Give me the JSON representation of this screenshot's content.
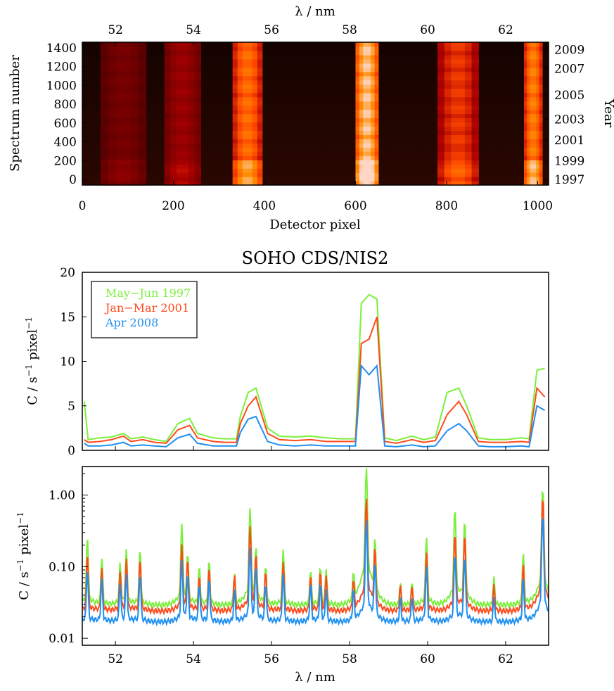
{
  "chart_data": [
    {
      "type": "heatmap",
      "title": "",
      "xlabel": "Detector pixel",
      "ylabel": "Spectrum number",
      "top_xlabel": "λ / nm",
      "right_ylabel": "Year",
      "xlim": [
        0,
        1024
      ],
      "ylim": [
        -60,
        1460
      ],
      "top_xlim": [
        51.15,
        63.1
      ],
      "x_ticks": [
        "0",
        "200",
        "400",
        "600",
        "800",
        "1000"
      ],
      "y_ticks": [
        "0",
        "200",
        "400",
        "600",
        "800",
        "1000",
        "1200",
        "1400"
      ],
      "top_ticks": [
        "52",
        "54",
        "56",
        "58",
        "60",
        "62"
      ],
      "year_ticks": [
        {
          "label": "1997",
          "spectrum": 0
        },
        {
          "label": "1999",
          "spectrum": 200
        },
        {
          "label": "2001",
          "spectrum": 420
        },
        {
          "label": "2003",
          "spectrum": 640
        },
        {
          "label": "2005",
          "spectrum": 900
        },
        {
          "label": "2007",
          "spectrum": 1180
        },
        {
          "label": "2009",
          "spectrum": 1380
        }
      ],
      "bands": [
        {
          "from": 40,
          "to": 140,
          "intensity": 0.22
        },
        {
          "from": 180,
          "to": 260,
          "intensity": 0.32
        },
        {
          "from": 330,
          "to": 395,
          "intensity": 0.72
        },
        {
          "from": 600,
          "to": 650,
          "intensity": 1.0
        },
        {
          "from": 780,
          "to": 870,
          "intensity": 0.55
        },
        {
          "from": 970,
          "to": 1010,
          "intensity": 0.78
        }
      ]
    },
    {
      "type": "line",
      "title": "SOHO CDS/NIS2",
      "xlabel": "",
      "ylabel": "C / s⁻¹ pixel⁻¹",
      "xlim": [
        51.15,
        63.1
      ],
      "ylim": [
        0,
        20
      ],
      "y_ticks": [
        "0",
        "5",
        "10",
        "15",
        "20"
      ],
      "legend": "top-left",
      "series": [
        {
          "name": "May−Jun 1997",
          "color": "#7bef3a",
          "x": [
            51.2,
            51.3,
            51.6,
            51.9,
            52.2,
            52.4,
            52.7,
            53.0,
            53.3,
            53.6,
            53.9,
            54.1,
            54.5,
            54.8,
            55.1,
            55.2,
            55.4,
            55.6,
            55.9,
            56.2,
            56.6,
            57.0,
            57.4,
            57.8,
            58.15,
            58.3,
            58.5,
            58.7,
            58.9,
            59.2,
            59.6,
            59.9,
            60.2,
            60.5,
            60.8,
            61.0,
            61.3,
            61.6,
            62.0,
            62.4,
            62.6,
            62.8,
            63.0
          ],
          "y": [
            5.5,
            1.2,
            1.4,
            1.5,
            1.9,
            1.3,
            1.5,
            1.2,
            1.0,
            3.0,
            3.6,
            1.9,
            1.4,
            1.3,
            1.3,
            3.8,
            6.5,
            7.0,
            2.5,
            1.6,
            1.5,
            1.6,
            1.4,
            1.3,
            1.3,
            16.5,
            17.5,
            17.0,
            1.4,
            1.1,
            1.6,
            1.2,
            1.5,
            6.5,
            7.0,
            5.0,
            1.4,
            1.2,
            1.2,
            1.4,
            1.3,
            9.0,
            9.2
          ]
        },
        {
          "name": "Jan−Mar 2001",
          "color": "#ff4a1c",
          "x": [
            51.2,
            51.3,
            51.6,
            51.9,
            52.2,
            52.4,
            52.7,
            53.0,
            53.3,
            53.6,
            53.9,
            54.1,
            54.5,
            54.8,
            55.1,
            55.2,
            55.4,
            55.6,
            55.9,
            56.2,
            56.6,
            57.0,
            57.4,
            57.8,
            58.15,
            58.3,
            58.5,
            58.7,
            58.9,
            59.2,
            59.6,
            59.9,
            60.2,
            60.5,
            60.8,
            61.0,
            61.3,
            61.6,
            62.0,
            62.4,
            62.6,
            62.8,
            63.0
          ],
          "y": [
            1.2,
            0.9,
            1.0,
            1.2,
            1.6,
            1.0,
            1.2,
            0.9,
            0.8,
            2.3,
            2.8,
            1.4,
            1.0,
            0.9,
            0.9,
            3.0,
            5.0,
            6.0,
            1.9,
            1.2,
            1.1,
            1.2,
            1.0,
            1.0,
            1.0,
            12.0,
            12.5,
            15.0,
            1.0,
            0.8,
            1.2,
            0.9,
            1.1,
            4.0,
            5.5,
            4.0,
            1.0,
            0.9,
            0.9,
            1.0,
            0.9,
            7.0,
            6.0
          ]
        },
        {
          "name": "Apr 2008",
          "color": "#1f8ff0",
          "x": [
            51.2,
            51.3,
            51.6,
            51.9,
            52.2,
            52.4,
            52.7,
            53.0,
            53.3,
            53.6,
            53.9,
            54.1,
            54.5,
            54.8,
            55.1,
            55.2,
            55.4,
            55.6,
            55.9,
            56.2,
            56.6,
            57.0,
            57.4,
            57.8,
            58.15,
            58.3,
            58.5,
            58.7,
            58.9,
            59.2,
            59.6,
            59.9,
            60.2,
            60.5,
            60.8,
            61.0,
            61.3,
            61.6,
            62.0,
            62.4,
            62.6,
            62.8,
            63.0
          ],
          "y": [
            0.8,
            0.5,
            0.5,
            0.6,
            0.9,
            0.5,
            0.6,
            0.5,
            0.4,
            1.4,
            1.8,
            0.8,
            0.5,
            0.5,
            0.5,
            2.0,
            3.5,
            3.8,
            1.0,
            0.6,
            0.5,
            0.6,
            0.5,
            0.5,
            0.5,
            9.5,
            8.5,
            9.5,
            0.5,
            0.4,
            0.6,
            0.4,
            0.5,
            2.2,
            3.0,
            2.2,
            0.5,
            0.4,
            0.4,
            0.5,
            0.4,
            5.0,
            4.5
          ]
        }
      ]
    },
    {
      "type": "line",
      "title": "",
      "xlabel": "λ / nm",
      "ylabel": "C / s⁻¹ pixel⁻¹",
      "xlim": [
        51.15,
        63.1
      ],
      "ylim": [
        0.008,
        2.5
      ],
      "log_y": true,
      "x_ticks": [
        "52",
        "54",
        "56",
        "58",
        "60",
        "62"
      ],
      "y_ticks": [
        "0.01",
        "0.10",
        "1.00"
      ],
      "series_ref": "same three series as the upper panel, log-scaled",
      "base": [
        0.029,
        0.024,
        0.017
      ],
      "peaks": [
        {
          "x": 51.28,
          "h": [
            0.22,
            0.12,
            0.07
          ]
        },
        {
          "x": 51.65,
          "h": [
            0.1,
            0.07,
            0.05
          ]
        },
        {
          "x": 52.12,
          "h": [
            0.08,
            0.06,
            0.04
          ]
        },
        {
          "x": 52.28,
          "h": [
            0.14,
            0.1,
            0.06
          ]
        },
        {
          "x": 52.63,
          "h": [
            0.14,
            0.1,
            0.06
          ]
        },
        {
          "x": 53.7,
          "h": [
            0.35,
            0.17,
            0.1
          ]
        },
        {
          "x": 53.85,
          "h": [
            0.12,
            0.1,
            0.06
          ]
        },
        {
          "x": 54.15,
          "h": [
            0.07,
            0.05,
            0.04
          ]
        },
        {
          "x": 54.4,
          "h": [
            0.09,
            0.07,
            0.05
          ]
        },
        {
          "x": 55.05,
          "h": [
            0.05,
            0.05,
            0.03
          ]
        },
        {
          "x": 55.45,
          "h": [
            0.6,
            0.33,
            0.16
          ]
        },
        {
          "x": 55.6,
          "h": [
            0.15,
            0.12,
            0.08
          ]
        },
        {
          "x": 55.85,
          "h": [
            0.07,
            0.06,
            0.04
          ]
        },
        {
          "x": 56.3,
          "h": [
            0.14,
            0.09,
            0.06
          ]
        },
        {
          "x": 57.0,
          "h": [
            0.06,
            0.05,
            0.04
          ]
        },
        {
          "x": 57.25,
          "h": [
            0.07,
            0.06,
            0.04
          ]
        },
        {
          "x": 57.4,
          "h": [
            0.06,
            0.05,
            0.03
          ]
        },
        {
          "x": 58.1,
          "h": [
            0.05,
            0.04,
            0.03
          ]
        },
        {
          "x": 58.43,
          "h": [
            2.3,
            0.85,
            0.42
          ]
        },
        {
          "x": 58.65,
          "h": [
            0.2,
            0.15,
            0.09
          ]
        },
        {
          "x": 59.3,
          "h": [
            0.03,
            0.03,
            0.02
          ]
        },
        {
          "x": 59.6,
          "h": [
            0.03,
            0.03,
            0.02
          ]
        },
        {
          "x": 59.97,
          "h": [
            0.22,
            0.13,
            0.08
          ]
        },
        {
          "x": 60.7,
          "h": [
            0.6,
            0.26,
            0.13
          ]
        },
        {
          "x": 60.95,
          "h": [
            0.4,
            0.25,
            0.12
          ]
        },
        {
          "x": 61.7,
          "h": [
            0.04,
            0.03,
            0.02
          ]
        },
        {
          "x": 62.45,
          "h": [
            0.12,
            0.08,
            0.05
          ]
        },
        {
          "x": 62.95,
          "h": [
            1.2,
            0.9,
            0.5
          ]
        }
      ]
    }
  ]
}
